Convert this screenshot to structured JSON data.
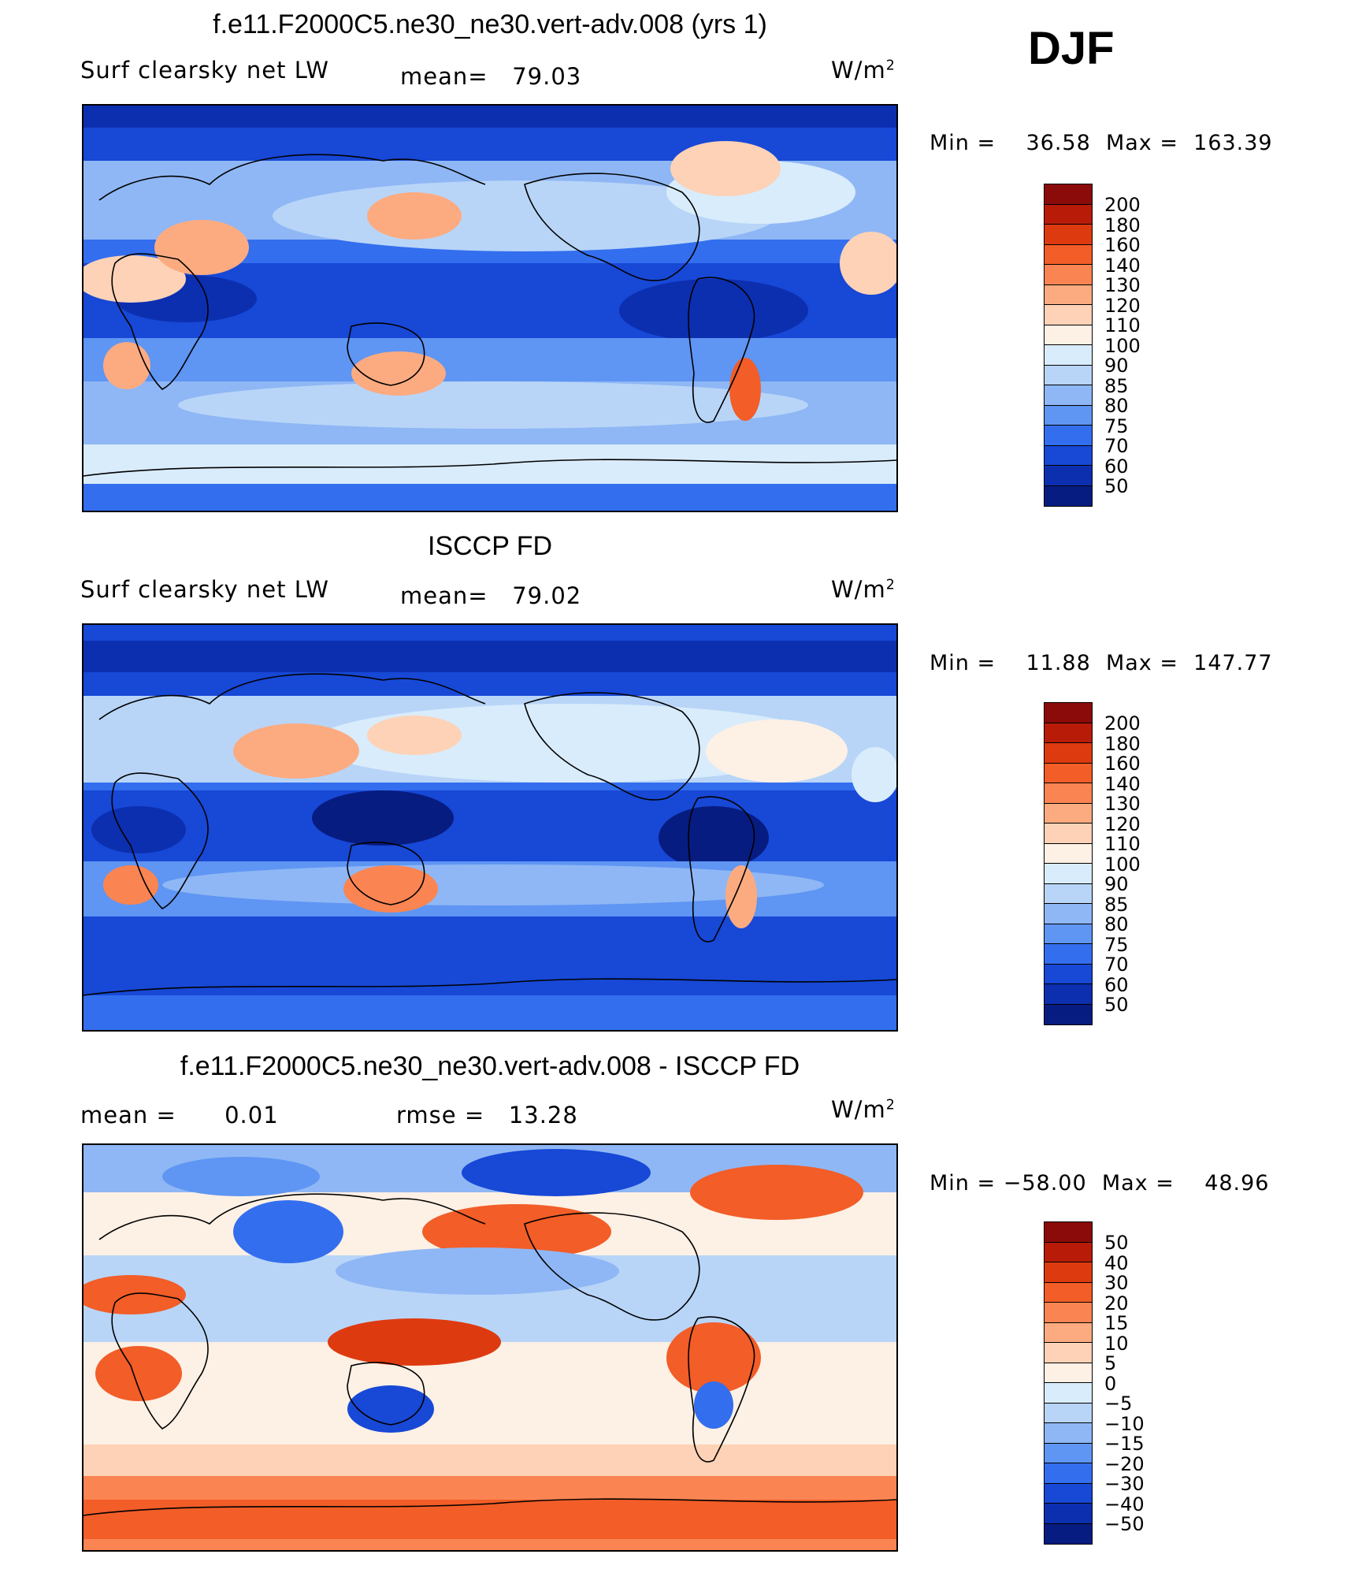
{
  "season": "DJF",
  "panels": [
    {
      "title": "f.e11.F2000C5.ne30_ne30.vert-adv.008 (yrs 1)",
      "left_label": "Surf clearsky net LW",
      "center_label": "mean=",
      "center_value": "79.03",
      "units_base": "W/m",
      "units_exp": "2",
      "min_label": "Min =",
      "min_value": "36.58",
      "max_label": "Max =",
      "max_value": "163.39",
      "colorbar_ticks": [
        "200",
        "180",
        "160",
        "140",
        "130",
        "120",
        "110",
        "100",
        "90",
        "85",
        "80",
        "75",
        "70",
        "60",
        "50"
      ]
    },
    {
      "title": "ISCCP FD",
      "left_label": "Surf clearsky net LW",
      "center_label": "mean=",
      "center_value": "79.02",
      "units_base": "W/m",
      "units_exp": "2",
      "min_label": "Min =",
      "min_value": "11.88",
      "max_label": "Max =",
      "max_value": "147.77",
      "colorbar_ticks": [
        "200",
        "180",
        "160",
        "140",
        "130",
        "120",
        "110",
        "100",
        "90",
        "85",
        "80",
        "75",
        "70",
        "60",
        "50"
      ]
    },
    {
      "title": "f.e11.F2000C5.ne30_ne30.vert-adv.008 - ISCCP FD",
      "left_label": "mean =",
      "left_value": "0.01",
      "center_label": "rmse =",
      "center_value": "13.28",
      "units_base": "W/m",
      "units_exp": "2",
      "min_label": "Min =",
      "min_value": "−58.00",
      "max_label": "Max =",
      "max_value": "48.96",
      "colorbar_ticks": [
        "50",
        "40",
        "30",
        "20",
        "15",
        "10",
        "5",
        "0",
        "−5",
        "−10",
        "−15",
        "−20",
        "−30",
        "−40",
        "−50"
      ]
    }
  ],
  "colorbar_colors": [
    "#8b0a0a",
    "#b81c08",
    "#de3a10",
    "#f25d28",
    "#fa8552",
    "#fcab80",
    "#fdd2b6",
    "#fdf0e4",
    "#d9ecfb",
    "#b8d5f8",
    "#8fb7f5",
    "#5f95f3",
    "#336eee",
    "#1748d6",
    "#0c2fb0",
    "#071c80"
  ],
  "colors": {
    "ocean_cold": "#0c2fb0",
    "ocean_mid": "#336eee",
    "ocean_light": "#b8d5f8",
    "warm": "#fcab80",
    "hot": "#f25d28",
    "coast": "#000000"
  }
}
